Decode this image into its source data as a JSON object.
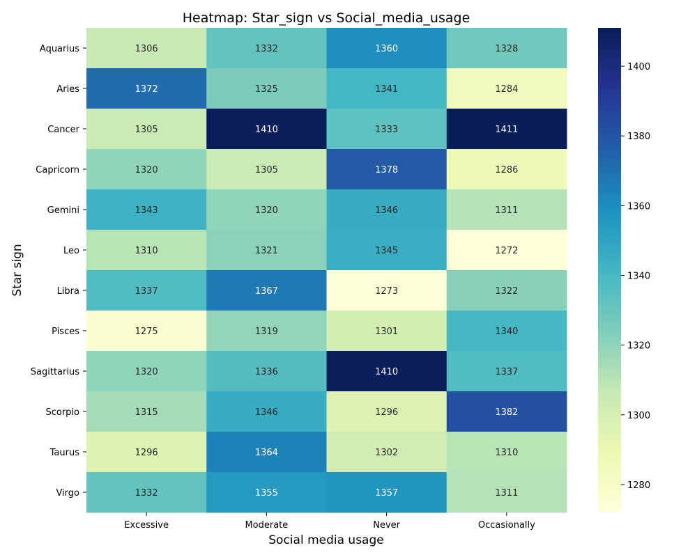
{
  "chart_data": {
    "type": "heatmap",
    "title": "Heatmap: Star_sign vs Social_media_usage",
    "xlabel": "Social media usage",
    "ylabel": "Star sign",
    "x_categories": [
      "Excessive",
      "Moderate",
      "Never",
      "Occasionally"
    ],
    "y_categories": [
      "Aquarius",
      "Aries",
      "Cancer",
      "Capricorn",
      "Gemini",
      "Leo",
      "Libra",
      "Pisces",
      "Sagittarius",
      "Scorpio",
      "Taurus",
      "Virgo"
    ],
    "values": [
      [
        1306,
        1332,
        1360,
        1328
      ],
      [
        1372,
        1325,
        1341,
        1284
      ],
      [
        1305,
        1410,
        1333,
        1411
      ],
      [
        1320,
        1305,
        1378,
        1286
      ],
      [
        1343,
        1320,
        1346,
        1311
      ],
      [
        1310,
        1321,
        1345,
        1272
      ],
      [
        1337,
        1367,
        1273,
        1322
      ],
      [
        1275,
        1319,
        1301,
        1340
      ],
      [
        1320,
        1336,
        1410,
        1337
      ],
      [
        1315,
        1346,
        1296,
        1382
      ],
      [
        1296,
        1364,
        1302,
        1310
      ],
      [
        1332,
        1355,
        1357,
        1311
      ]
    ],
    "colorscale": "YlGnBu",
    "colorbar": {
      "min": 1272,
      "max": 1411,
      "ticks": [
        1280,
        1300,
        1320,
        1340,
        1360,
        1380,
        1400
      ]
    }
  }
}
